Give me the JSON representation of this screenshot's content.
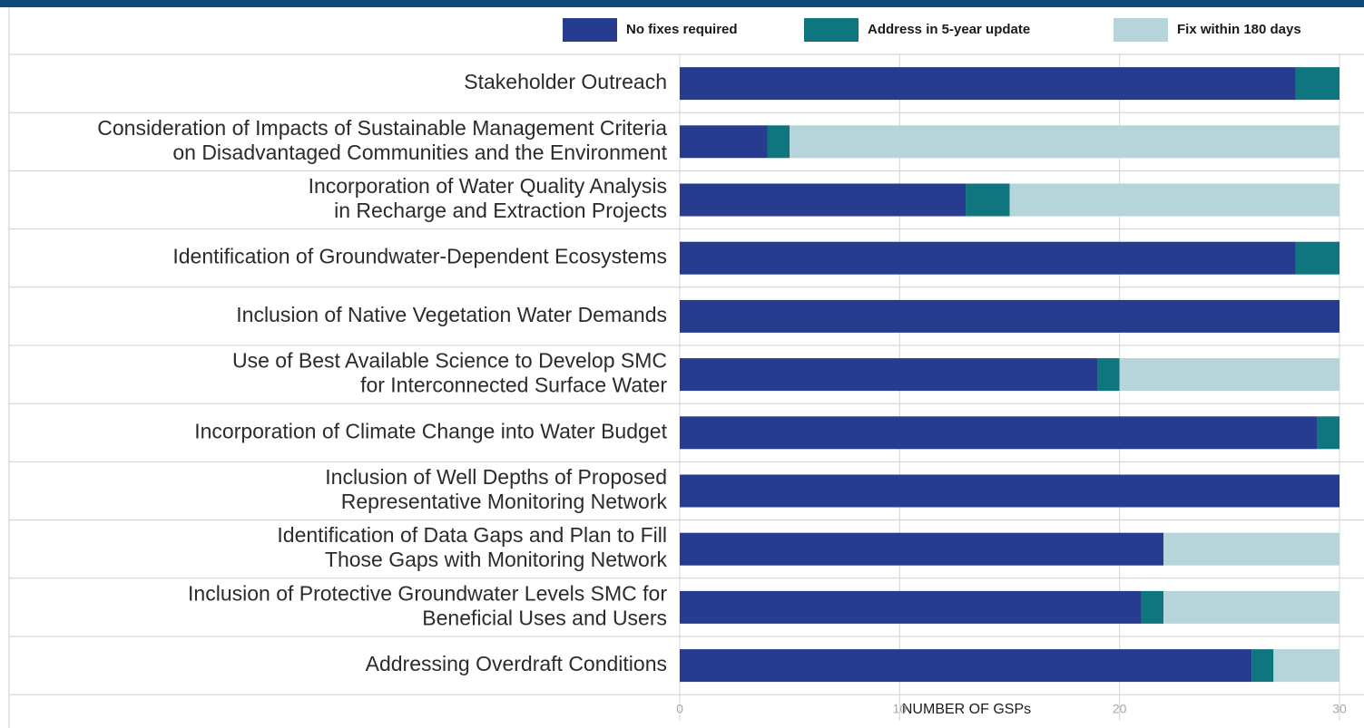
{
  "chart_data": {
    "type": "stacked-barh",
    "categories": [
      "Stakeholder Outreach",
      "Consideration of Impacts of Sustainable Management Criteria\non Disadvantaged Communities and the Environment",
      "Incorporation of Water Quality Analysis\nin Recharge and Extraction Projects",
      "Identification of Groundwater-Dependent Ecosystems",
      "Inclusion of Native Vegetation Water Demands",
      "Use of Best Available Science to Develop SMC\nfor Interconnected Surface Water",
      "Incorporation of Climate Change into Water Budget",
      "Inclusion of Well Depths of Proposed\nRepresentative Monitoring Network",
      "Identification of Data Gaps and Plan to Fill\nThose Gaps with Monitoring Network",
      "Inclusion of Protective Groundwater Levels SMC for\nBeneficial Uses and Users",
      "Addressing Overdraft Conditions"
    ],
    "series": [
      {
        "name": "No fixes required",
        "color": "#263d8f",
        "values": [
          28,
          4,
          13,
          28,
          30,
          19,
          29,
          30,
          22,
          21,
          26
        ]
      },
      {
        "name": "Address in 5-year update",
        "color": "#0f7680",
        "values": [
          2,
          1,
          2,
          2,
          0,
          1,
          1,
          0,
          0,
          1,
          1
        ]
      },
      {
        "name": "Fix within 180 days",
        "color": "#b6d5da",
        "values": [
          0,
          25,
          15,
          0,
          0,
          10,
          0,
          0,
          8,
          8,
          3
        ]
      }
    ],
    "xlabel": "NUMBER OF GSPs",
    "xlim": [
      0,
      30
    ],
    "xticks": [
      0,
      10,
      20,
      30
    ],
    "grid": true,
    "legend": "top-right"
  }
}
